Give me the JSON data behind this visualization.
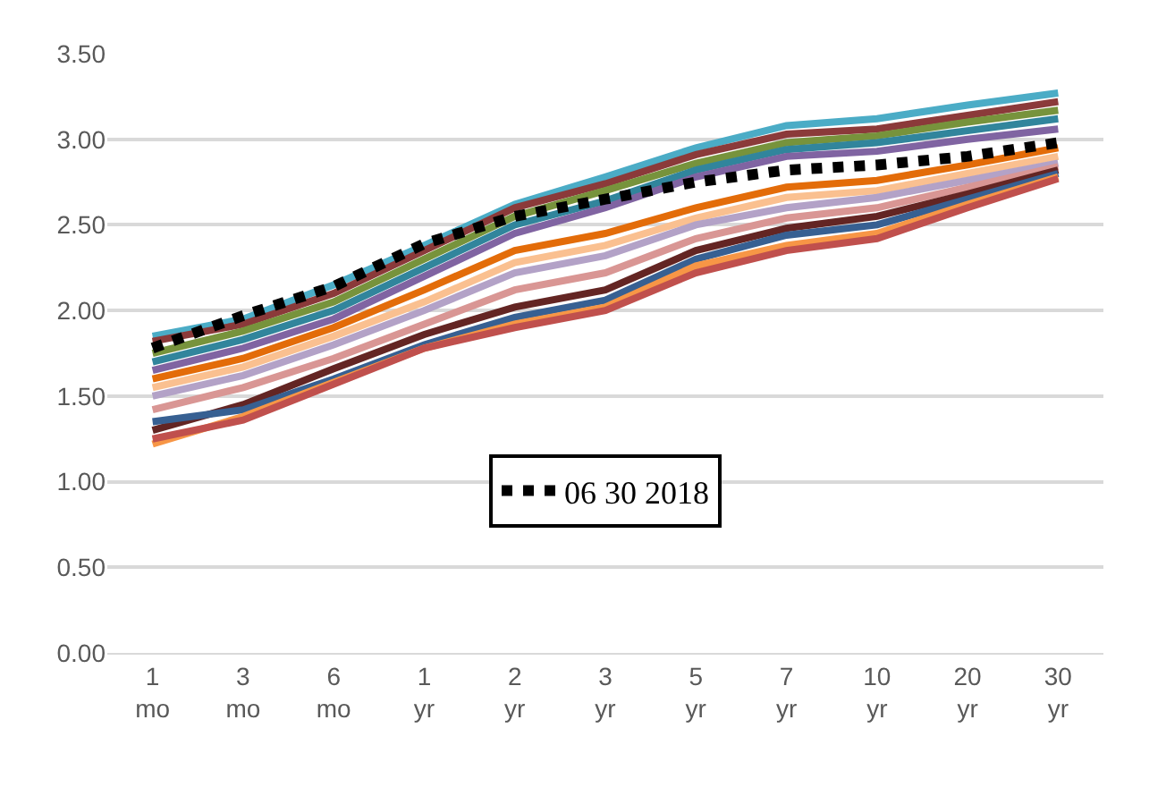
{
  "chart_data": {
    "type": "line",
    "categories": [
      "1 mo",
      "3 mo",
      "6 mo",
      "1 yr",
      "2 yr",
      "3 yr",
      "5 yr",
      "7 yr",
      "10 yr",
      "20 yr",
      "30 yr"
    ],
    "ylim": [
      0,
      3.5
    ],
    "yticks": [
      {
        "value": 0,
        "label": "0.00"
      },
      {
        "value": 0.5,
        "label": "0.50"
      },
      {
        "value": 1,
        "label": "1.00"
      },
      {
        "value": 1.5,
        "label": "1.50"
      },
      {
        "value": 2,
        "label": "2.00"
      },
      {
        "value": 2.5,
        "label": "2.50"
      },
      {
        "value": 3,
        "label": "3.00"
      },
      {
        "value": 3.5,
        "label": "3.50"
      }
    ],
    "grid": "y",
    "legend": "bottom",
    "line_style": "solid",
    "marker": "none",
    "series": [
      {
        "color": "#4bacc6",
        "values": [
          1.85,
          1.95,
          2.15,
          2.38,
          2.62,
          2.78,
          2.95,
          3.08,
          3.12,
          3.2,
          3.27
        ]
      },
      {
        "color": "#8b3a3a",
        "values": [
          1.82,
          1.92,
          2.1,
          2.35,
          2.6,
          2.74,
          2.91,
          3.03,
          3.06,
          3.14,
          3.22
        ]
      },
      {
        "color": "#77933c",
        "values": [
          1.75,
          1.88,
          2.05,
          2.3,
          2.55,
          2.7,
          2.86,
          2.98,
          3.02,
          3.1,
          3.17
        ]
      },
      {
        "color": "#31859c",
        "values": [
          1.7,
          1.83,
          2.0,
          2.25,
          2.5,
          2.64,
          2.82,
          2.94,
          2.98,
          3.05,
          3.12
        ]
      },
      {
        "color": "#8064a2",
        "values": [
          1.65,
          1.78,
          1.95,
          2.2,
          2.45,
          2.6,
          2.78,
          2.9,
          2.93,
          3.0,
          3.06
        ]
      },
      {
        "color": "#e36c09",
        "values": [
          1.6,
          1.72,
          1.9,
          2.12,
          2.35,
          2.45,
          2.6,
          2.72,
          2.76,
          2.85,
          2.95
        ]
      },
      {
        "color": "#fac090",
        "values": [
          1.55,
          1.67,
          1.85,
          2.05,
          2.28,
          2.38,
          2.54,
          2.66,
          2.7,
          2.8,
          2.9
        ]
      },
      {
        "color": "#b3a2c7",
        "values": [
          1.5,
          1.62,
          1.8,
          2.0,
          2.22,
          2.32,
          2.5,
          2.6,
          2.66,
          2.76,
          2.86
        ]
      },
      {
        "color": "#d99694",
        "values": [
          1.42,
          1.55,
          1.72,
          1.92,
          2.12,
          2.22,
          2.42,
          2.54,
          2.6,
          2.72,
          2.84
        ]
      },
      {
        "color": "#632523",
        "values": [
          1.3,
          1.45,
          1.66,
          1.86,
          2.02,
          2.12,
          2.35,
          2.48,
          2.55,
          2.68,
          2.82
        ]
      },
      {
        "color": "#376092",
        "values": [
          1.35,
          1.42,
          1.6,
          1.8,
          1.96,
          2.06,
          2.3,
          2.44,
          2.5,
          2.65,
          2.8
        ]
      },
      {
        "color": "#f79646",
        "values": [
          1.22,
          1.38,
          1.58,
          1.78,
          1.92,
          2.02,
          2.26,
          2.38,
          2.45,
          2.62,
          2.78
        ]
      },
      {
        "color": "#c0504d",
        "values": [
          1.25,
          1.36,
          1.57,
          1.78,
          1.9,
          2.0,
          2.22,
          2.35,
          2.42,
          2.6,
          2.77
        ]
      },
      {
        "name": "06 30 2018",
        "color": "#000000",
        "line_style": "dotted",
        "values": [
          1.78,
          1.97,
          2.14,
          2.39,
          2.55,
          2.65,
          2.75,
          2.82,
          2.85,
          2.9,
          2.98
        ]
      }
    ]
  }
}
